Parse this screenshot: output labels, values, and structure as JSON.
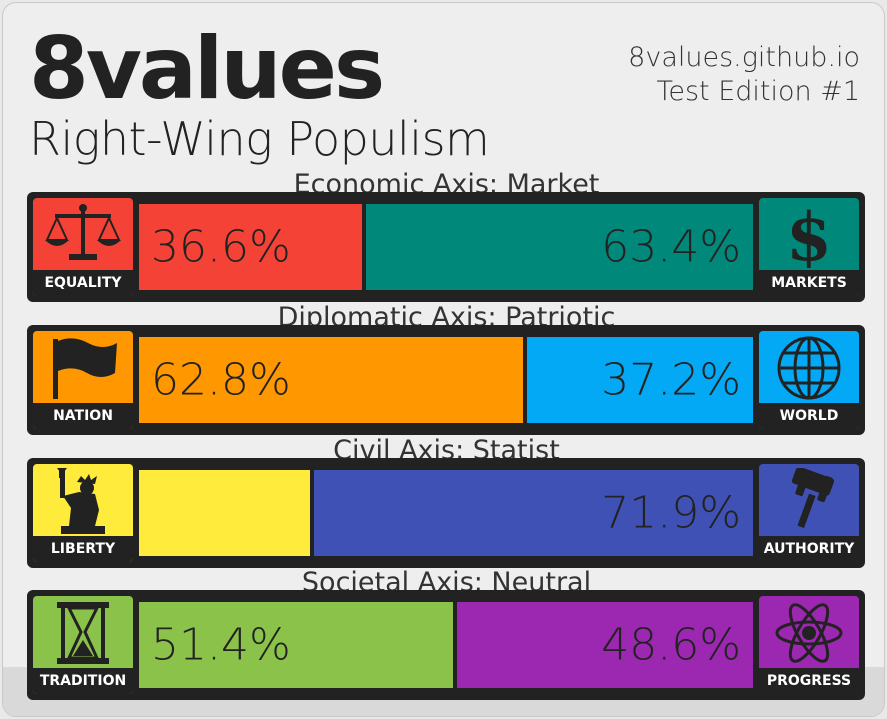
{
  "header": {
    "logo": "8values",
    "ideology": "Right-Wing Populism",
    "site": "8values.github.io",
    "edition": "Test Edition #1"
  },
  "axes": [
    {
      "label": "Economic Axis: Market",
      "left": {
        "name": "EQUALITY",
        "value": 36.6,
        "display": "36.6%",
        "color": "#f44336",
        "icon": "scales-icon"
      },
      "right": {
        "name": "MARKETS",
        "value": 63.4,
        "display": "63.4%",
        "color": "#00897b",
        "icon": "dollar-icon"
      }
    },
    {
      "label": "Diplomatic Axis: Patriotic",
      "left": {
        "name": "NATION",
        "value": 62.8,
        "display": "62.8%",
        "color": "#ff9800",
        "icon": "flag-icon"
      },
      "right": {
        "name": "WORLD",
        "value": 37.2,
        "display": "37.2%",
        "color": "#03a9f4",
        "icon": "globe-icon"
      }
    },
    {
      "label": "Civil Axis: Statist",
      "left": {
        "name": "LIBERTY",
        "value": 28.1,
        "display": "",
        "color": "#ffeb3b",
        "icon": "statue-of-liberty-icon"
      },
      "right": {
        "name": "AUTHORITY",
        "value": 71.9,
        "display": "71.9%",
        "color": "#3f51b5",
        "icon": "gavel-icon"
      }
    },
    {
      "label": "Societal Axis: Neutral",
      "left": {
        "name": "TRADITION",
        "value": 51.4,
        "display": "51.4%",
        "color": "#8bc34a",
        "icon": "hourglass-icon"
      },
      "right": {
        "name": "PROGRESS",
        "value": 48.6,
        "display": "48.6%",
        "color": "#9c27b0",
        "icon": "atom-icon"
      }
    }
  ]
}
